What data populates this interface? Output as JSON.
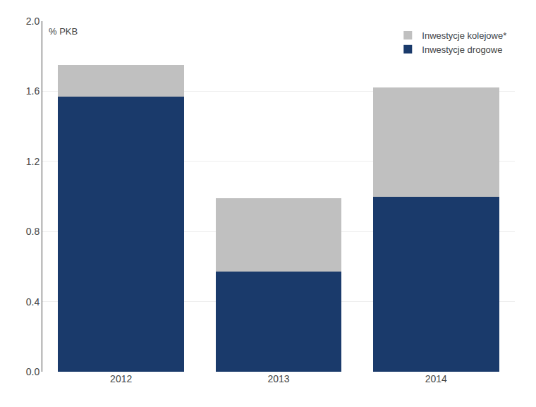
{
  "chart_data": {
    "type": "bar",
    "stacked": true,
    "categories": [
      "2012",
      "2013",
      "2014"
    ],
    "series": [
      {
        "name": "Inwestycje drogowe",
        "color": "#1a3a6b",
        "values": [
          1.57,
          0.57,
          1.0
        ]
      },
      {
        "name": "Inwestycje kolejowe*",
        "color": "#c0c0c0",
        "values": [
          0.18,
          0.42,
          0.62
        ]
      }
    ],
    "ylim": [
      0.0,
      2.0
    ],
    "yticks": [
      {
        "value": 0.0,
        "label": "0.0"
      },
      0.4,
      0.8,
      1.2,
      1.6,
      {
        "value": 2.0,
        "label": "2.0"
      }
    ],
    "annotations": [
      "% PKB"
    ],
    "legend": "upper right",
    "grid": true
  }
}
